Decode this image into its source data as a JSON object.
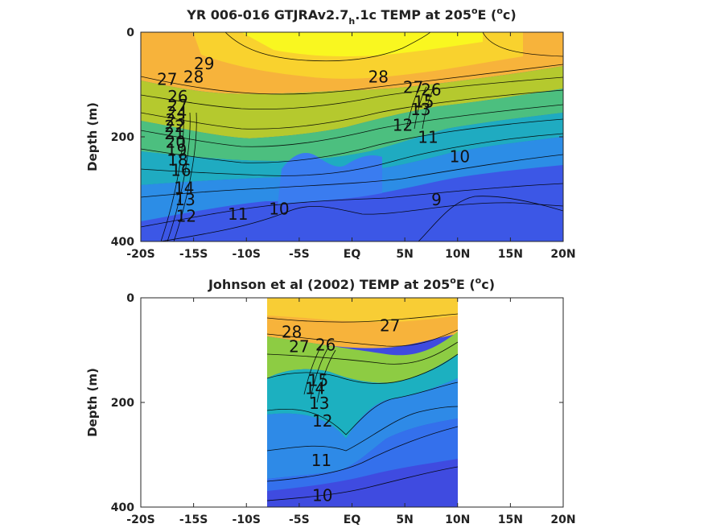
{
  "figure": {
    "width": 875,
    "height": 656
  },
  "chart_data": [
    {
      "type": "heatmap",
      "title_prefix": "YR 006-016 GTJRAv2.7",
      "title_sub": "h",
      "title_mid": ".1c TEMP at 205",
      "title_sup": "o",
      "title_end": "E (",
      "title_sup2": "o",
      "title_end2": "c)",
      "xlabel": "",
      "ylabel": "Depth (m)",
      "xlim": [
        -20,
        20
      ],
      "ylim": [
        400,
        0
      ],
      "x_ticks": [
        -20,
        -15,
        -10,
        -5,
        0,
        5,
        10,
        15,
        20
      ],
      "x_tick_labels": [
        "-20S",
        "-15S",
        "-10S",
        "-5S",
        "EQ",
        "5N",
        "10N",
        "15N",
        "20N"
      ],
      "y_ticks": [
        0,
        200,
        400
      ],
      "y_tick_labels": [
        "0",
        "200",
        "400"
      ],
      "data_x_range": [
        -20,
        20
      ],
      "colormap": "parula",
      "color_range": [
        8,
        30
      ],
      "contour_labels": [
        {
          "text": "29",
          "lat": -14,
          "depth": 62
        },
        {
          "text": "28",
          "lat": -15,
          "depth": 88
        },
        {
          "text": "27",
          "lat": -17.5,
          "depth": 92
        },
        {
          "text": "26",
          "lat": -16.5,
          "depth": 125
        },
        {
          "text": "27",
          "lat": -16.5,
          "depth": 142
        },
        {
          "text": "24",
          "lat": -16.6,
          "depth": 156
        },
        {
          "text": "23",
          "lat": -16.7,
          "depth": 170
        },
        {
          "text": "22",
          "lat": -16.8,
          "depth": 182
        },
        {
          "text": "21",
          "lat": -16.8,
          "depth": 196
        },
        {
          "text": "20",
          "lat": -16.7,
          "depth": 212
        },
        {
          "text": "19",
          "lat": -16.6,
          "depth": 228
        },
        {
          "text": "18",
          "lat": -16.5,
          "depth": 246
        },
        {
          "text": "16",
          "lat": -16.2,
          "depth": 266
        },
        {
          "text": "14",
          "lat": -15.9,
          "depth": 300
        },
        {
          "text": "13",
          "lat": -15.8,
          "depth": 322
        },
        {
          "text": "12",
          "lat": -15.7,
          "depth": 354
        },
        {
          "text": "11",
          "lat": -10.8,
          "depth": 350
        },
        {
          "text": "10",
          "lat": -6.9,
          "depth": 340
        },
        {
          "text": "28",
          "lat": 2.5,
          "depth": 88
        },
        {
          "text": "27",
          "lat": 5.8,
          "depth": 108
        },
        {
          "text": "26",
          "lat": 7.5,
          "depth": 112
        },
        {
          "text": "15",
          "lat": 6.8,
          "depth": 135
        },
        {
          "text": "13",
          "lat": 6.5,
          "depth": 150
        },
        {
          "text": "12",
          "lat": 4.8,
          "depth": 180
        },
        {
          "text": "11",
          "lat": 7.2,
          "depth": 203
        },
        {
          "text": "10",
          "lat": 10.2,
          "depth": 240
        },
        {
          "text": "9",
          "lat": 8.0,
          "depth": 322
        }
      ]
    },
    {
      "type": "heatmap",
      "title_prefix": "Johnson et al (2002) TEMP at 205",
      "title_sup": "o",
      "title_end": "E (",
      "title_sup2": "o",
      "title_end2": "c)",
      "xlabel": "",
      "ylabel": "Depth (m)",
      "xlim": [
        -20,
        20
      ],
      "ylim": [
        400,
        0
      ],
      "x_ticks": [
        -20,
        -15,
        -10,
        -5,
        0,
        5,
        10,
        15,
        20
      ],
      "x_tick_labels": [
        "-20S",
        "-15S",
        "-10S",
        "-5S",
        "EQ",
        "5N",
        "10N",
        "15N",
        "20N"
      ],
      "y_ticks": [
        0,
        200,
        400
      ],
      "y_tick_labels": [
        "0",
        "200",
        "400"
      ],
      "data_x_range": [
        -8,
        10
      ],
      "colormap": "parula",
      "color_range": [
        8,
        30
      ],
      "contour_labels": [
        {
          "text": "28",
          "lat": -5.7,
          "depth": 68
        },
        {
          "text": "27",
          "lat": -5.0,
          "depth": 95
        },
        {
          "text": "26",
          "lat": -2.5,
          "depth": 92
        },
        {
          "text": "27",
          "lat": 3.6,
          "depth": 55
        },
        {
          "text": "15",
          "lat": -3.2,
          "depth": 160
        },
        {
          "text": "14",
          "lat": -3.5,
          "depth": 175
        },
        {
          "text": "13",
          "lat": -3.1,
          "depth": 204
        },
        {
          "text": "12",
          "lat": -2.8,
          "depth": 238
        },
        {
          "text": "11",
          "lat": -2.9,
          "depth": 313
        },
        {
          "text": "10",
          "lat": -2.8,
          "depth": 380
        }
      ]
    }
  ]
}
